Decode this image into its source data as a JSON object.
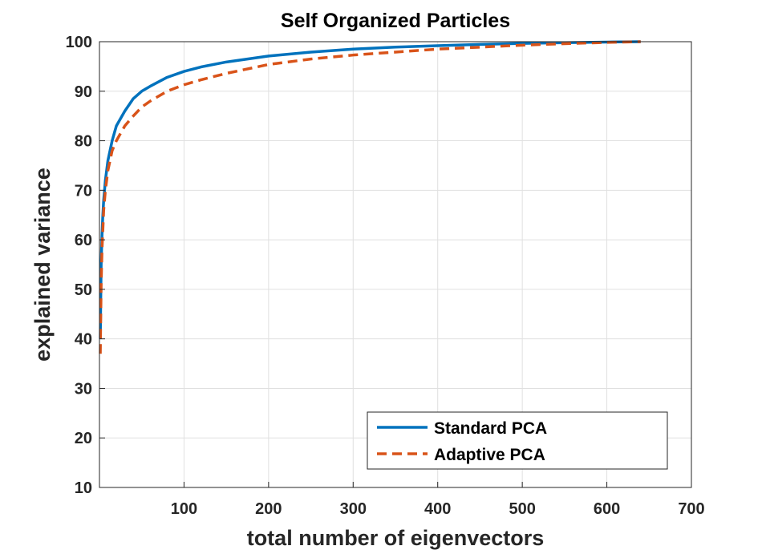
{
  "chart_data": {
    "type": "line",
    "title": "Self Organized Particles",
    "xlabel": "total number of eigenvectors",
    "ylabel": "explained variance",
    "xlim": [
      0,
      700
    ],
    "ylim": [
      10,
      100
    ],
    "x_ticks": [
      100,
      200,
      300,
      400,
      500,
      600,
      700
    ],
    "y_ticks": [
      10,
      20,
      30,
      40,
      50,
      60,
      70,
      80,
      90,
      100
    ],
    "grid": true,
    "legend_position": "bottom-right",
    "series": [
      {
        "name": "Standard PCA",
        "color": "#0072BD",
        "style": "solid",
        "x": [
          1,
          2,
          3,
          4,
          5,
          7,
          10,
          15,
          20,
          30,
          40,
          50,
          60,
          80,
          100,
          120,
          150,
          200,
          250,
          300,
          350,
          400,
          450,
          500,
          550,
          600,
          640
        ],
        "y": [
          40,
          55,
          61,
          65,
          68,
          72,
          76,
          80,
          83,
          86,
          88.5,
          90,
          91,
          92.8,
          94,
          94.9,
          95.9,
          97.1,
          97.9,
          98.5,
          98.9,
          99.2,
          99.45,
          99.65,
          99.8,
          99.92,
          100
        ]
      },
      {
        "name": "Adaptive PCA",
        "color": "#D95319",
        "style": "dashed",
        "x": [
          1,
          2,
          3,
          4,
          5,
          7,
          10,
          15,
          20,
          30,
          40,
          50,
          60,
          80,
          100,
          120,
          150,
          200,
          250,
          300,
          350,
          400,
          450,
          500,
          550,
          600,
          640
        ],
        "y": [
          37,
          51,
          58,
          62,
          66,
          70,
          74,
          78,
          80,
          83,
          85,
          86.8,
          88,
          90,
          91.3,
          92.3,
          93.6,
          95.4,
          96.5,
          97.3,
          97.9,
          98.5,
          98.9,
          99.3,
          99.6,
          99.85,
          100
        ]
      }
    ]
  }
}
